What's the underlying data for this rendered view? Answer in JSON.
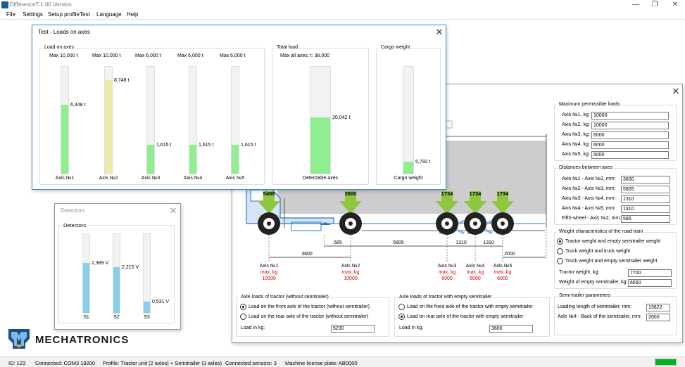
{
  "app": {
    "title": "DifferenceT 1.00 Version"
  },
  "menu": [
    "File",
    "Settings",
    "Setup profile",
    "Test",
    "Language",
    "Help"
  ],
  "loads_window": {
    "title": "Test - Loads on axes",
    "axes_group": "Load on axes",
    "total_group": "Total load",
    "cargo_group": "Cargo weight",
    "axes": [
      {
        "max": "Max 10,000 t",
        "value": "6,448 t",
        "label": "Axis №1",
        "fraction": 0.6448,
        "color": "#90ee90"
      },
      {
        "max": "Max 10,000 t",
        "value": "8,748 t",
        "label": "Axis №2",
        "fraction": 0.8748,
        "color": "#eee8aa"
      },
      {
        "max": "Max 6,000 t",
        "value": "1,615 t",
        "label": "Axis №3",
        "fraction": 0.269,
        "color": "#90ee90"
      },
      {
        "max": "Max 6,000 t",
        "value": "1,615 t",
        "label": "Axis №4",
        "fraction": 0.269,
        "color": "#90ee90"
      },
      {
        "max": "Max 6,000 t",
        "value": "1,615 t",
        "label": "Axis №5",
        "fraction": 0.269,
        "color": "#90ee90"
      }
    ],
    "total": {
      "max": "Max all axes, t: 38,000",
      "value": "20,042 t",
      "label": "Detectable axes",
      "fraction": 0.527,
      "color": "#90ee90"
    },
    "cargo": {
      "value": "5,792 t",
      "label": "Cargo weight",
      "fraction": 0.11,
      "color": "#90ee90"
    }
  },
  "detectors_window": {
    "title": "Detectors",
    "group": "Detectors",
    "sensors": [
      {
        "value": "2,389 V",
        "label": "S1",
        "fraction": 0.63,
        "color": "#87ceeb"
      },
      {
        "value": "2,215 V",
        "label": "S2",
        "fraction": 0.58,
        "color": "#87ceeb"
      },
      {
        "value": "0,531 V",
        "label": "S3",
        "fraction": 0.14,
        "color": "#87ceeb"
      }
    ]
  },
  "config": {
    "diagram": {
      "top_loads": [
        "5489",
        "3600",
        "1734",
        "1734",
        "1734"
      ],
      "dims": [
        "3600",
        "585",
        "5805",
        "1310",
        "1310",
        "2000"
      ],
      "axis_labels": [
        "Axis №1",
        "Axis №2",
        "Axis №3",
        "Axis №4",
        "Axis №5"
      ],
      "max_kg_label": "max, kg",
      "max_kg": [
        "10000",
        "10000",
        "6000",
        "6000",
        "6000"
      ]
    },
    "max_loads": {
      "title": "Maximum permissible loads",
      "rows": [
        {
          "label": "Axis №1, kg:",
          "value": "10000"
        },
        {
          "label": "Axis №2, kg:",
          "value": "10000"
        },
        {
          "label": "Axis №3, kg:",
          "value": "6000"
        },
        {
          "label": "Axis №4, kg:",
          "value": "6000"
        },
        {
          "label": "Axis №5, kg:",
          "value": "6000"
        }
      ]
    },
    "distances": {
      "title": "Distances between axes",
      "rows": [
        {
          "label": "Axis №1 - Axis №2, mm:",
          "value": "3600"
        },
        {
          "label": "Axis №2 - Axis №3, mm:",
          "value": "5805"
        },
        {
          "label": "Axis №3 - Axis №4, mm:",
          "value": "1310"
        },
        {
          "label": "Axis №4 - Axis №5, mm:",
          "value": "1310"
        },
        {
          "label": "Fifth-wheel - Axis №2, mm:",
          "value": "585"
        }
      ]
    },
    "weight": {
      "title": "Weight characteristics of the road train",
      "options": [
        "Tractor weight and empty semitrailer weight",
        "Truck weight and truck weight",
        "Truck weight and empty semitrailer weight"
      ],
      "tractor_label": "Tractor weight, kg:",
      "tractor_value": "7700",
      "semitrailer_label": "Weight of empty semitrailer, kg:",
      "semitrailer_value": "6550"
    },
    "semitrailer": {
      "title": "Semi-trailer parameters",
      "length_label": "Loading length of semitrailer, mm:",
      "length_value": "13622",
      "axle_label": "Axle №4 - Back of the semitrailer, mm:",
      "axle_value": "2000"
    },
    "tractor_axle": {
      "title": "Axle loads of tractor (without semitrailer)",
      "options": [
        "Load on the front axle of the tractor (without semitrailer)",
        "Load on the rear axle of the tractor (without semitrailer)"
      ],
      "load_label": "Load in kg:",
      "load_value": "5230"
    },
    "tractor_empty": {
      "title": "Axle loads of tractor with empty semitrailer",
      "options": [
        "Load on the front axle of the tractor with empty semitrailer",
        "Load on rear axle of the tractor with empty semitrailer"
      ],
      "load_label": "Load in kg:",
      "load_value": "3600"
    }
  },
  "logo": {
    "text": "MECHATRONICS"
  },
  "status": {
    "id": "ID: 123",
    "connection": "Connected: COM3 19200",
    "profile": "Profile: Tractor unit (2 axles) + Semitrailer (3 axles)",
    "sensors": "Connected sensors: 3",
    "plate": "Machine license plate: AB0000",
    "progress": 0.95
  },
  "colors": {
    "accent": "#0078d7",
    "arrow": "#8ec63f",
    "red": "#e00000",
    "detector": "#87ceeb",
    "bar_green": "#90ee90",
    "bar_yellow": "#eee8aa"
  }
}
